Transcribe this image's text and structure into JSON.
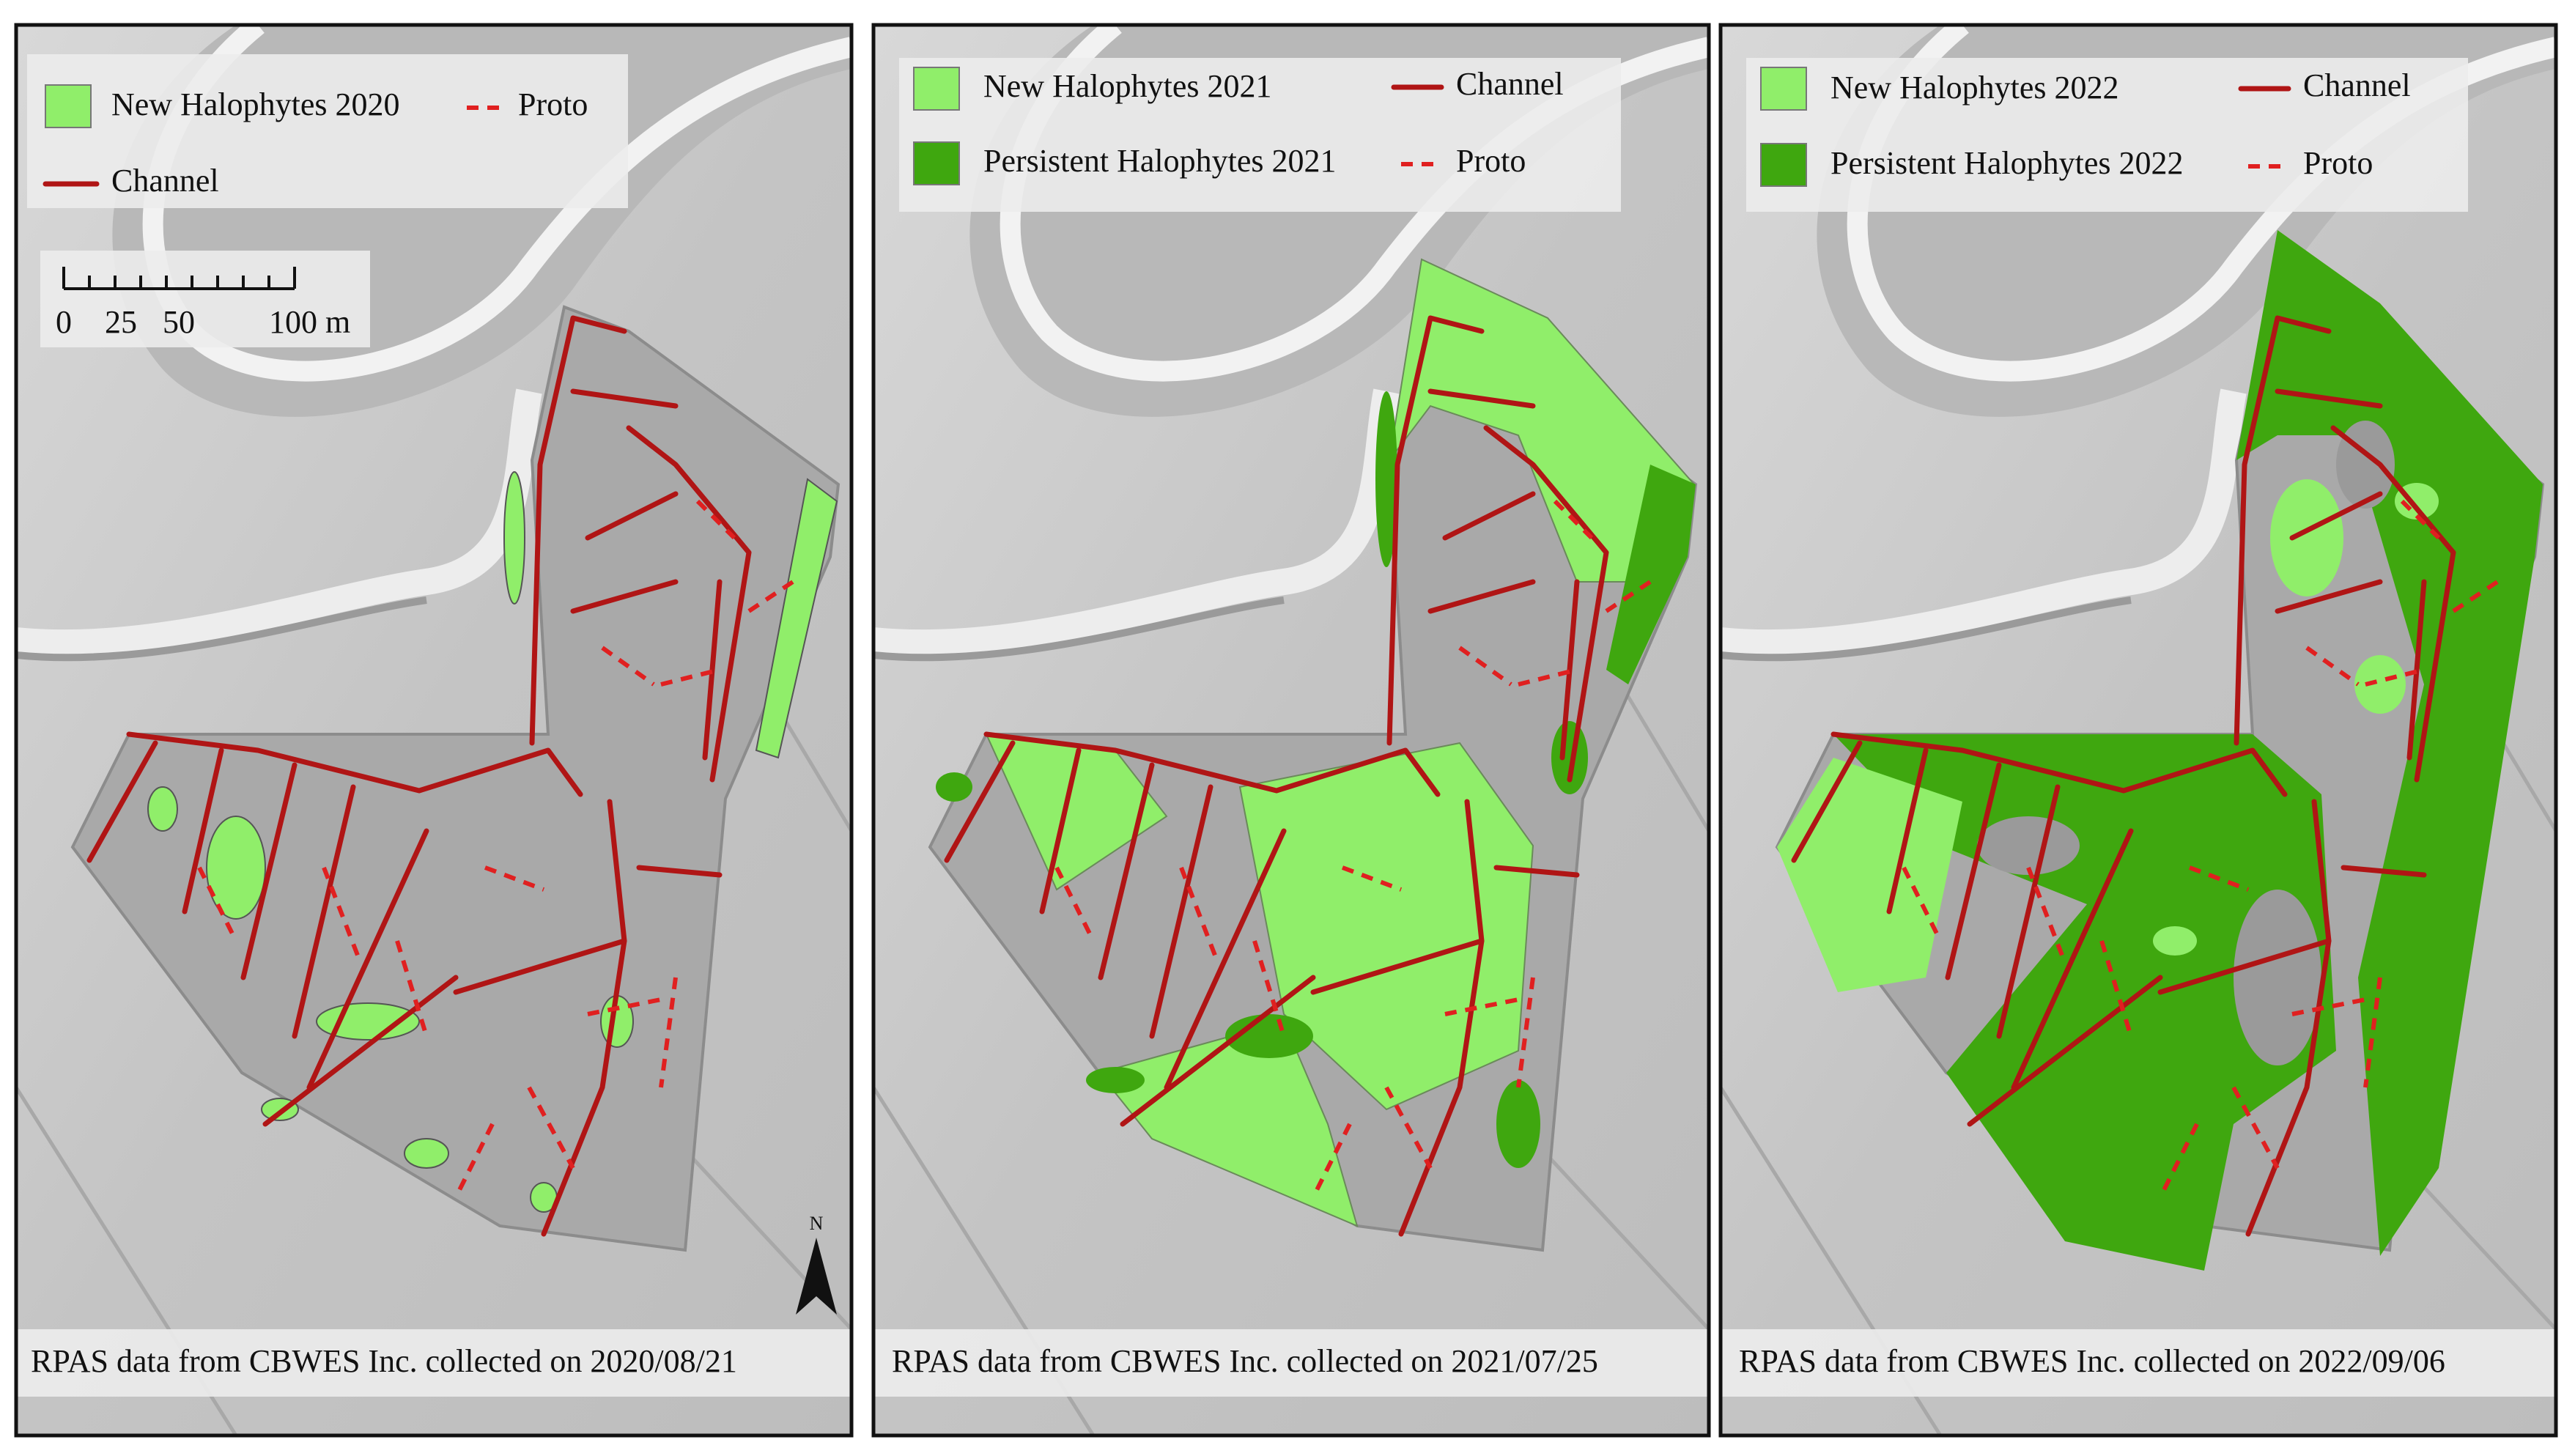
{
  "panels": [
    {
      "legend": {
        "new": "New Halophytes 2020",
        "proto": "Proto",
        "channel": "Channel"
      },
      "caption": "RPAS data from CBWES Inc. collected on 2020/08/21"
    },
    {
      "legend": {
        "new": "New Halophytes 2021",
        "channel": "Channel",
        "persistent": "Persistent Halophytes 2021",
        "proto": "Proto"
      },
      "caption": "RPAS data from CBWES Inc. collected on 2021/07/25"
    },
    {
      "legend": {
        "new": "New Halophytes 2022",
        "channel": "Channel",
        "persistent": "Persistent Halophytes 2022",
        "proto": "Proto"
      },
      "caption": "RPAS data from CBWES Inc. collected on 2022/09/06"
    }
  ],
  "scale_bar": {
    "labels": [
      "0",
      "25",
      "50",
      "100 m"
    ]
  },
  "north": "N"
}
